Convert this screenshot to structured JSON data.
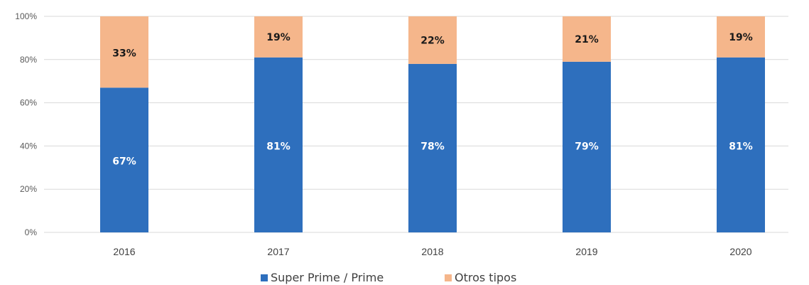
{
  "chart_data": {
    "type": "bar",
    "stacked": true,
    "categories": [
      "2016",
      "2017",
      "2018",
      "2019",
      "2020"
    ],
    "series": [
      {
        "name": "Super Prime / Prime",
        "values": [
          67,
          81,
          78,
          79,
          81
        ],
        "labels": [
          "67%",
          "81%",
          "78%",
          "79%",
          "81%"
        ],
        "color": "#2e6fbd",
        "label_color": "#ffffff"
      },
      {
        "name": "Otros tipos",
        "values": [
          33,
          19,
          22,
          21,
          19
        ],
        "labels": [
          "33%",
          "19%",
          "22%",
          "21%",
          "19%"
        ],
        "color": "#f5b68b",
        "label_color": "#1a1a1a"
      }
    ],
    "y_ticks": [
      "0%",
      "20%",
      "40%",
      "60%",
      "80%",
      "100%"
    ],
    "y_tick_values": [
      0,
      20,
      40,
      60,
      80,
      100
    ],
    "ylim": [
      0,
      100
    ],
    "grid": true,
    "grid_color": "#d9d9d9",
    "legend_position": "bottom"
  }
}
